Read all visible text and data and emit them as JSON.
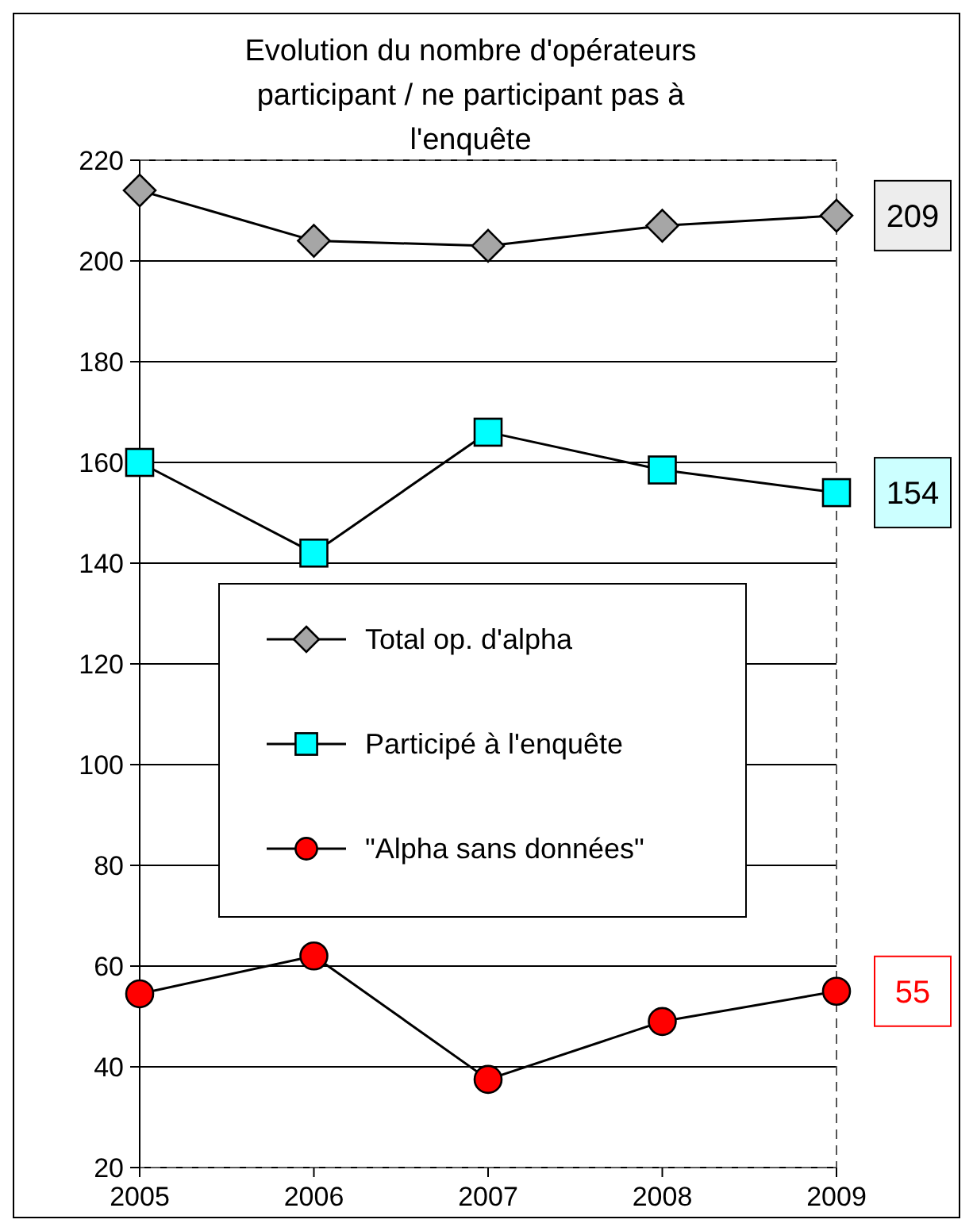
{
  "chart_data": {
    "type": "line",
    "title": "Evolution du nombre d'opérateurs participant / ne participant pas à l'enquête",
    "categories": [
      "2005",
      "2006",
      "2007",
      "2008",
      "2009"
    ],
    "series": [
      {
        "name": "Total op. d'alpha",
        "color": "#a6a6a6",
        "marker": "diamond",
        "values": [
          214,
          204,
          203,
          207,
          209
        ],
        "value_labels": [
          null,
          null,
          null,
          null,
          "209"
        ]
      },
      {
        "name": "Participé à l'enquête",
        "color": "#00ffff",
        "marker": "square",
        "values": [
          160,
          142,
          166,
          158.5,
          154
        ],
        "value_labels": [
          null,
          null,
          null,
          null,
          "154"
        ]
      },
      {
        "name": "\"Alpha sans données\"",
        "color": "#ff0000",
        "marker": "circle",
        "values": [
          54.5,
          62,
          37.5,
          49,
          55
        ],
        "value_labels": [
          null,
          null,
          null,
          null,
          "55"
        ]
      }
    ],
    "ylim": [
      20,
      220
    ],
    "yticks": [
      20,
      40,
      60,
      80,
      100,
      120,
      140,
      160,
      180,
      200,
      220
    ],
    "grid": "y",
    "legend": "left"
  }
}
